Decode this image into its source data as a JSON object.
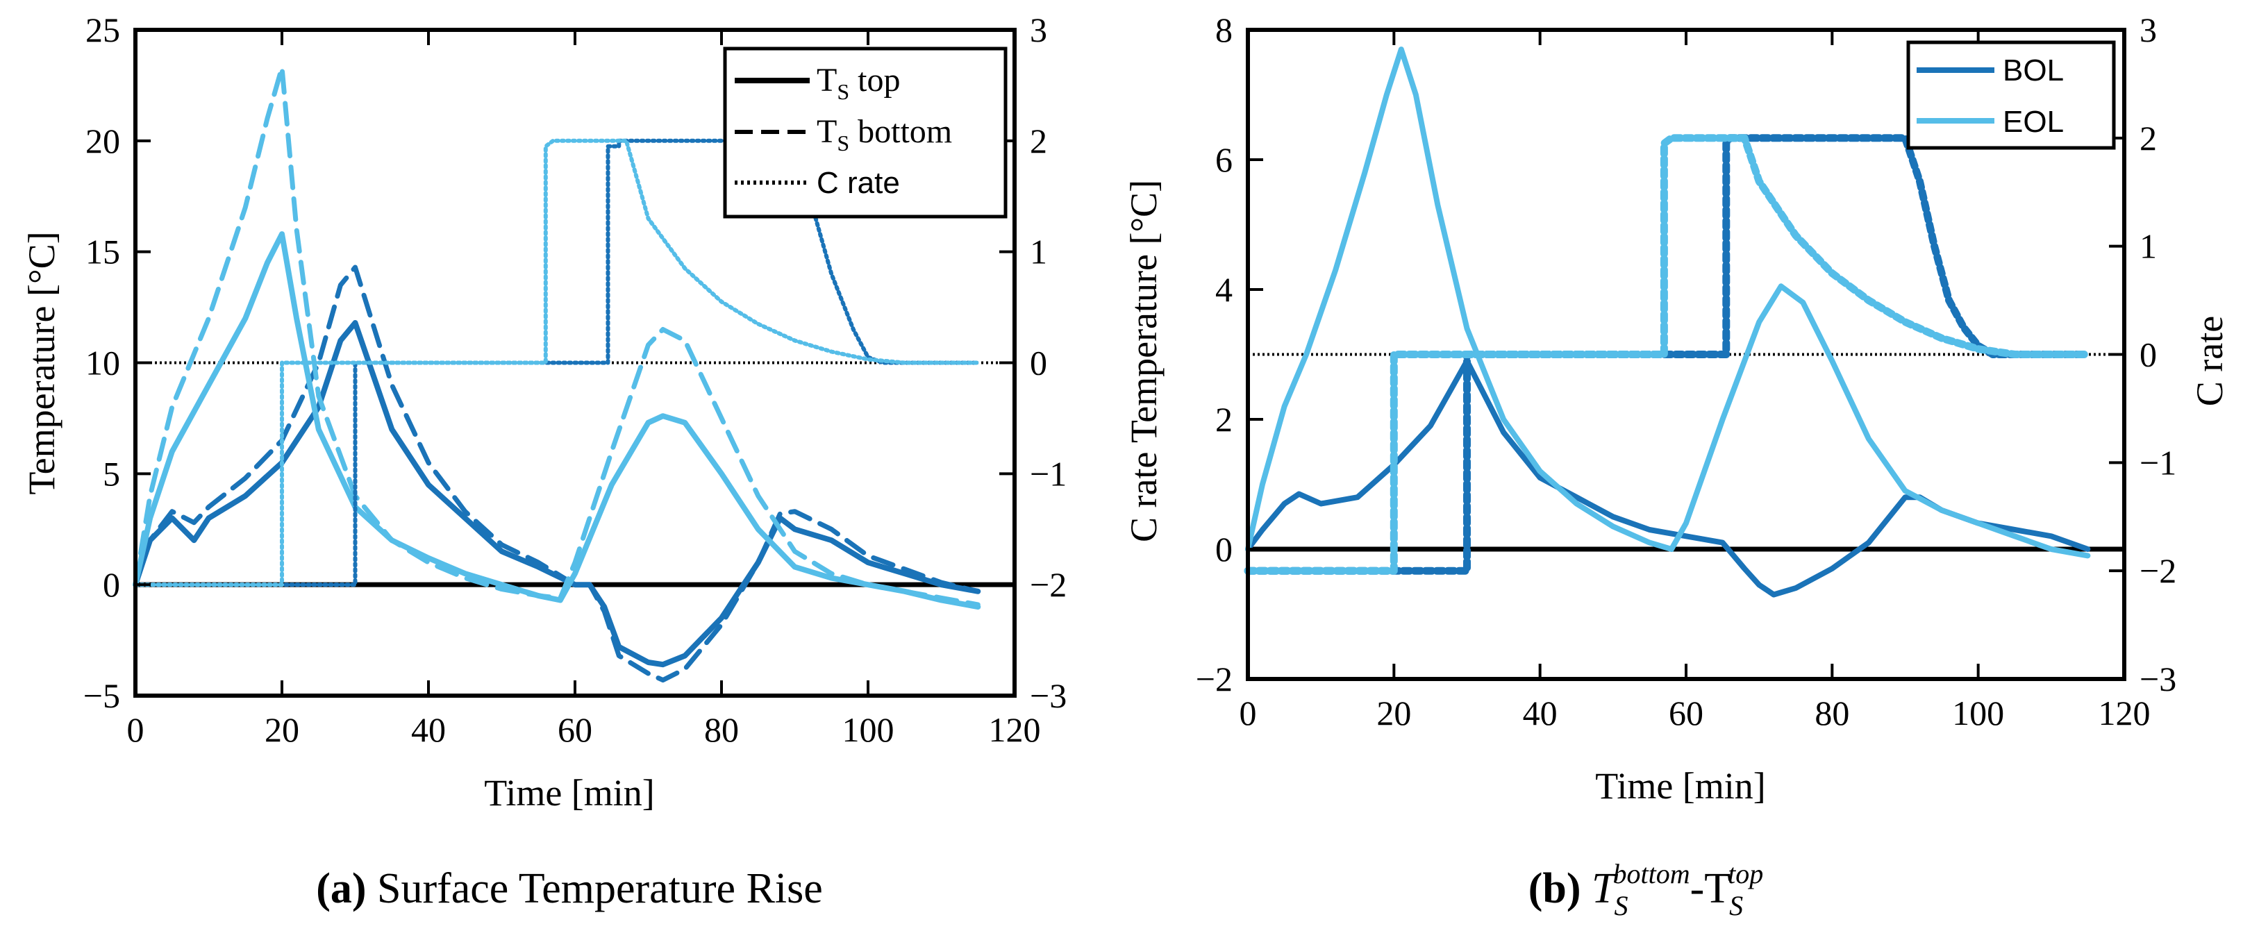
{
  "colors": {
    "bol": "#1a73b8",
    "eol": "#55bde8",
    "black": "#000000"
  },
  "chart_data": [
    {
      "type": "line",
      "panel": "a",
      "caption_label": "(a)",
      "caption_text": "Surface Temperature Rise",
      "xlabel": "Time [min]",
      "ylabel": "Temperature [°C]",
      "y2label": "",
      "xlim": [
        0,
        120
      ],
      "ylim": [
        -5,
        25
      ],
      "y2lim": [
        -3,
        3
      ],
      "xticks": [
        0,
        20,
        40,
        60,
        80,
        100,
        120
      ],
      "yticks": [
        -5,
        0,
        5,
        10,
        15,
        20,
        25
      ],
      "y2ticks": [
        -3,
        -2,
        -1,
        0,
        1,
        2,
        3
      ],
      "legend": {
        "position": "top-right",
        "entries": [
          {
            "label": "T",
            "sub": "S",
            "suffix": " top",
            "style": "solid"
          },
          {
            "label": "T",
            "sub": "S",
            "suffix": " bottom",
            "style": "dashed"
          },
          {
            "label": "C rate",
            "sub": "",
            "suffix": "",
            "style": "dotted"
          }
        ]
      },
      "zero_line": 0,
      "ref_line_y2": 0,
      "series": [
        {
          "name": "BOL T_S top",
          "color": "bol",
          "style": "solid",
          "axis": "left",
          "x": [
            0,
            2,
            5,
            8,
            10,
            15,
            20,
            25,
            28,
            30,
            35,
            40,
            45,
            50,
            55,
            60,
            62,
            64,
            66,
            70,
            72,
            75,
            80,
            85,
            88,
            90,
            95,
            100,
            105,
            110,
            115
          ],
          "y": [
            0,
            2,
            3,
            2,
            3,
            4,
            5.5,
            8,
            11,
            11.8,
            7,
            4.5,
            3,
            1.5,
            0.8,
            0,
            0,
            -1,
            -2.8,
            -3.5,
            -3.6,
            -3.2,
            -1.5,
            1,
            3,
            2.5,
            2,
            1,
            0.5,
            0,
            -0.3
          ]
        },
        {
          "name": "BOL T_S bottom",
          "color": "bol",
          "style": "dashed",
          "axis": "left",
          "x": [
            0,
            2,
            5,
            8,
            10,
            15,
            20,
            25,
            28,
            30,
            35,
            40,
            45,
            50,
            55,
            60,
            62,
            64,
            66,
            70,
            72,
            75,
            80,
            85,
            88,
            90,
            95,
            100,
            105,
            110,
            115
          ],
          "y": [
            0,
            2,
            3.3,
            2.8,
            3.5,
            4.8,
            6.5,
            10,
            13.5,
            14.3,
            9,
            5.5,
            3.3,
            1.8,
            1,
            0,
            0,
            -1.2,
            -3.2,
            -4,
            -4.3,
            -3.8,
            -1.8,
            1,
            3.2,
            3.3,
            2.5,
            1.3,
            0.7,
            0.1,
            -0.3
          ]
        },
        {
          "name": "EOL T_S top",
          "color": "eol",
          "style": "solid",
          "axis": "left",
          "x": [
            0,
            2,
            5,
            10,
            15,
            18,
            20,
            22,
            25,
            30,
            35,
            40,
            45,
            50,
            55,
            58,
            60,
            65,
            70,
            72,
            75,
            80,
            85,
            90,
            95,
            100,
            105,
            110,
            115
          ],
          "y": [
            0,
            3,
            6,
            9,
            12,
            14.5,
            15.8,
            12,
            7,
            3.5,
            2,
            1.2,
            0.5,
            0,
            -0.5,
            -0.7,
            0.5,
            4.5,
            7.3,
            7.6,
            7.3,
            5,
            2.5,
            0.8,
            0.3,
            0,
            -0.3,
            -0.7,
            -1
          ]
        },
        {
          "name": "EOL T_S bottom",
          "color": "eol",
          "style": "dashed",
          "axis": "left",
          "x": [
            0,
            2,
            5,
            10,
            15,
            18,
            20,
            22,
            25,
            30,
            35,
            40,
            45,
            50,
            55,
            58,
            60,
            65,
            70,
            72,
            75,
            80,
            85,
            90,
            95,
            100,
            105,
            110,
            115
          ],
          "y": [
            0,
            4,
            8,
            12,
            17,
            21,
            23.3,
            16,
            8.5,
            4,
            2,
            1,
            0.3,
            -0.2,
            -0.5,
            -0.6,
            1,
            6,
            10.8,
            11.5,
            11,
            7.5,
            4,
            1.5,
            0.5,
            0,
            -0.3,
            -0.6,
            -0.9
          ]
        },
        {
          "name": "BOL C rate",
          "color": "bol",
          "style": "dotted",
          "axis": "right",
          "x": [
            0,
            30,
            30,
            64.5,
            64.5,
            66,
            66,
            80,
            90,
            92,
            95,
            98,
            100,
            102,
            105,
            115
          ],
          "y": [
            -2,
            -2,
            0,
            0,
            1.95,
            1.95,
            2,
            2,
            2,
            1.5,
            0.8,
            0.3,
            0.05,
            0,
            0,
            0
          ]
        },
        {
          "name": "EOL C rate",
          "color": "eol",
          "style": "dotted",
          "axis": "right",
          "x": [
            0,
            20,
            20,
            56,
            56,
            57,
            67,
            70,
            75,
            80,
            85,
            90,
            95,
            100,
            105,
            115
          ],
          "y": [
            -2,
            -2,
            0,
            0,
            1.95,
            2,
            2,
            1.3,
            0.85,
            0.55,
            0.35,
            0.2,
            0.1,
            0.03,
            0,
            0
          ]
        }
      ]
    },
    {
      "type": "line",
      "panel": "b",
      "caption_label": "(b)",
      "caption_text_parts": [
        "T",
        "S",
        "bottom",
        "-T",
        "S",
        "top"
      ],
      "xlabel": "Time [min]",
      "ylabel": "C rate  Temperature [°C]",
      "y2label": "C rate",
      "xlim": [
        0,
        120
      ],
      "ylim": [
        -2,
        8
      ],
      "y2lim": [
        -3,
        3
      ],
      "xticks": [
        0,
        20,
        40,
        60,
        80,
        100,
        120
      ],
      "yticks": [
        -2,
        0,
        2,
        4,
        6,
        8
      ],
      "y2ticks": [
        -3,
        -2,
        -1,
        0,
        1,
        2,
        3
      ],
      "legend": {
        "position": "top-right",
        "entries": [
          {
            "label": "BOL",
            "color": "bol"
          },
          {
            "label": "EOL",
            "color": "eol"
          }
        ]
      },
      "zero_line": 0,
      "ref_line_y2": 0,
      "series": [
        {
          "name": "BOL",
          "color": "bol",
          "style": "solid",
          "axis": "left",
          "x": [
            0,
            2,
            5,
            7,
            10,
            15,
            20,
            25,
            28,
            30,
            35,
            40,
            45,
            50,
            55,
            60,
            65,
            68,
            70,
            72,
            75,
            80,
            85,
            90,
            92,
            95,
            100,
            105,
            110,
            115
          ],
          "y": [
            0,
            0.3,
            0.7,
            0.85,
            0.7,
            0.8,
            1.3,
            1.9,
            2.5,
            2.9,
            1.8,
            1.1,
            0.8,
            0.5,
            0.3,
            0.2,
            0.1,
            -0.3,
            -0.55,
            -0.7,
            -0.6,
            -0.3,
            0.1,
            0.8,
            0.8,
            0.6,
            0.4,
            0.3,
            0.2,
            0
          ]
        },
        {
          "name": "EOL",
          "color": "eol",
          "style": "solid",
          "axis": "left",
          "x": [
            0,
            2,
            5,
            8,
            12,
            16,
            19,
            21,
            23,
            26,
            30,
            35,
            40,
            45,
            50,
            55,
            58,
            60,
            65,
            70,
            73,
            76,
            80,
            85,
            90,
            95,
            100,
            105,
            110,
            115
          ],
          "y": [
            0,
            1,
            2.2,
            3,
            4.3,
            5.8,
            7,
            7.7,
            7,
            5.3,
            3.4,
            2,
            1.2,
            0.7,
            0.35,
            0.1,
            0,
            0.4,
            2,
            3.5,
            4.05,
            3.8,
            2.9,
            1.7,
            0.9,
            0.6,
            0.4,
            0.2,
            0,
            -0.1
          ]
        },
        {
          "name": "BOL C rate",
          "color": "bol",
          "style": "dotted",
          "axis": "right",
          "x": [
            0,
            30,
            30,
            65.5,
            65.5,
            66,
            90,
            92,
            94,
            96,
            98,
            100,
            102,
            115
          ],
          "y": [
            -2,
            -2,
            0,
            0,
            1.95,
            2,
            2,
            1.6,
            1,
            0.5,
            0.25,
            0.08,
            0,
            0
          ]
        },
        {
          "name": "EOL C rate",
          "color": "eol",
          "style": "dotted",
          "axis": "right",
          "x": [
            0,
            20,
            20,
            57,
            57,
            58,
            68,
            70,
            75,
            80,
            85,
            90,
            95,
            100,
            105,
            115
          ],
          "y": [
            -2,
            -2,
            0,
            0,
            1.95,
            2,
            2,
            1.6,
            1.1,
            0.75,
            0.5,
            0.3,
            0.15,
            0.05,
            0,
            0
          ]
        }
      ]
    }
  ]
}
